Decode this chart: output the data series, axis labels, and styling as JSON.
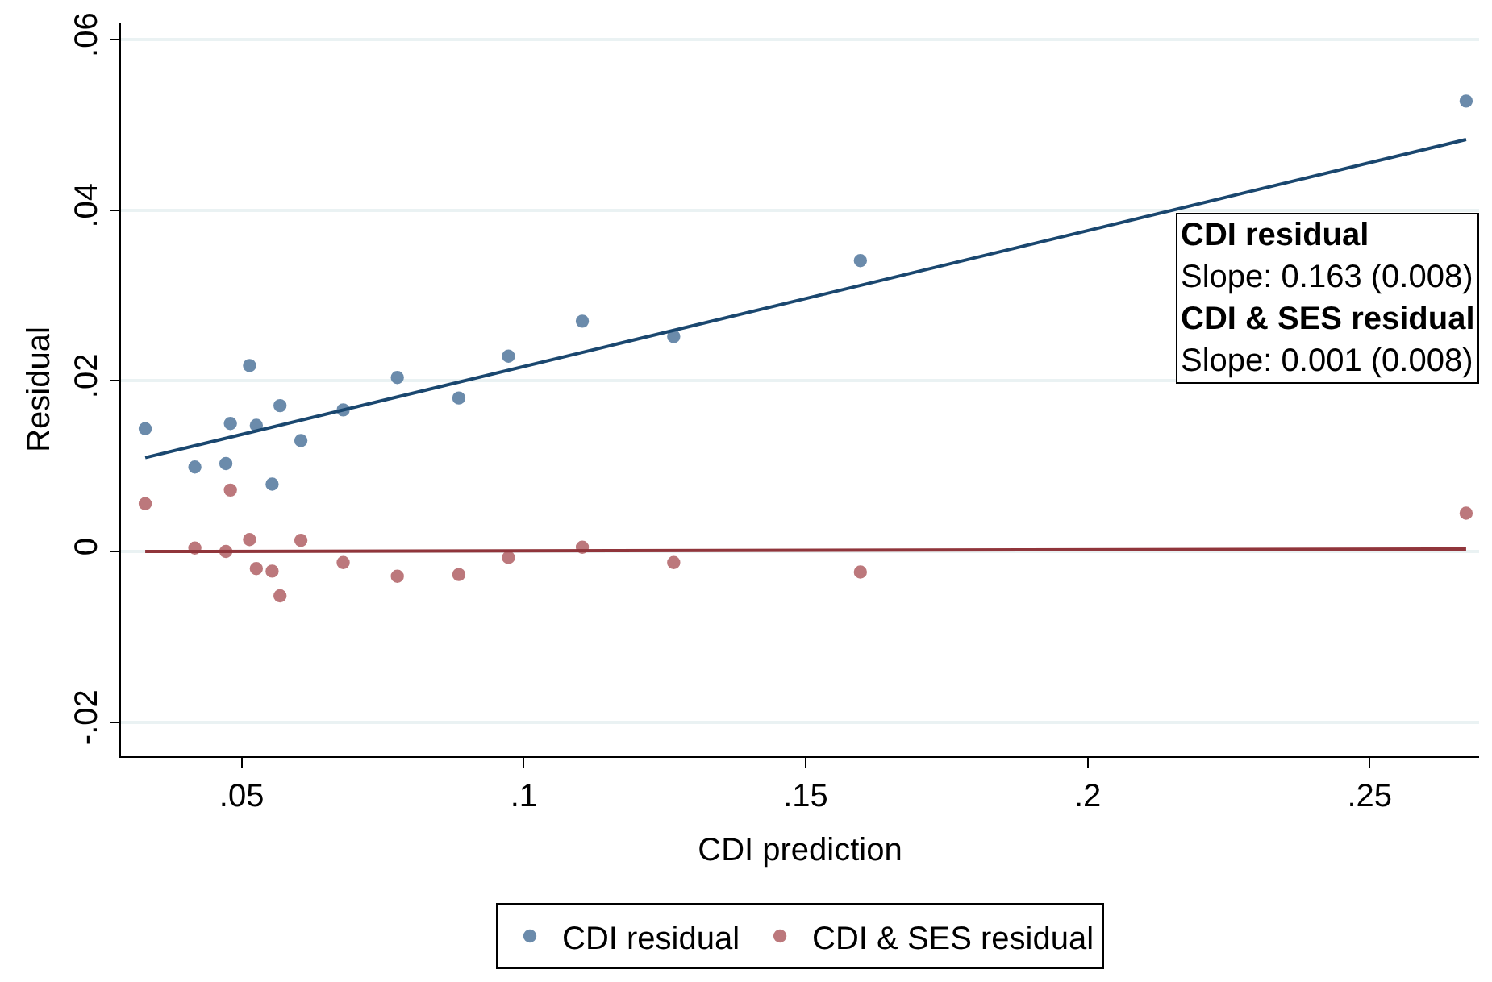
{
  "chart_data": {
    "type": "scatter",
    "xlabel": "CDI prediction",
    "ylabel": "Residual",
    "xlim": [
      0.0286,
      0.2694
    ],
    "ylim": [
      -0.024,
      0.062
    ],
    "xticks": [
      {
        "value": 0.05,
        "label": ".05"
      },
      {
        "value": 0.1,
        "label": ".1"
      },
      {
        "value": 0.15,
        "label": ".15"
      },
      {
        "value": 0.2,
        "label": ".2"
      },
      {
        "value": 0.25,
        "label": ".25"
      }
    ],
    "yticks": [
      {
        "value": -0.02,
        "label": "-.02"
      },
      {
        "value": 0,
        "label": "0"
      },
      {
        "value": 0.02,
        "label": ".02"
      },
      {
        "value": 0.04,
        "label": ".04"
      },
      {
        "value": 0.06,
        "label": ".06"
      }
    ],
    "grid": "y",
    "legend": "bottom",
    "marker": "circle",
    "annotations": [
      "CDI residual",
      "Slope: 0.163 (0.008)",
      "CDI & SES residual",
      "Slope: 0.001 (0.008)"
    ],
    "series": [
      {
        "name": "CDI residual",
        "color": "#5b7fa3",
        "x": [
          0.0329,
          0.0417,
          0.0472,
          0.048,
          0.0514,
          0.0526,
          0.0554,
          0.0568,
          0.0605,
          0.068,
          0.0776,
          0.0885,
          0.0973,
          0.1104,
          0.1266,
          0.1597,
          0.2671
        ],
        "values": [
          0.0144,
          0.0099,
          0.0103,
          0.015,
          0.0218,
          0.0148,
          0.0079,
          0.0171,
          0.013,
          0.0166,
          0.0204,
          0.018,
          0.0229,
          0.027,
          0.0252,
          0.0341,
          0.0528
        ]
      },
      {
        "name": "CDI & SES residual",
        "color": "#b56a6e",
        "x": [
          0.0329,
          0.0417,
          0.0472,
          0.048,
          0.0514,
          0.0526,
          0.0554,
          0.0568,
          0.0605,
          0.068,
          0.0776,
          0.0885,
          0.0973,
          0.1104,
          0.1266,
          0.1597,
          0.2671
        ],
        "values": [
          0.0056,
          0.0004,
          0.0,
          0.0072,
          0.0014,
          -0.002,
          -0.0023,
          -0.0052,
          0.0013,
          -0.0013,
          -0.0029,
          -0.0027,
          -0.0007,
          0.0005,
          -0.0013,
          -0.0024,
          0.0045
        ]
      },
      {
        "type": "line",
        "marker": "none",
        "color": "#1a476f",
        "x": [
          0.0329,
          0.2671
        ],
        "values": [
          0.011,
          0.0483
        ]
      },
      {
        "type": "line",
        "marker": "none",
        "color": "#90353b",
        "x": [
          0.0329,
          0.2671
        ],
        "values": [
          0.0,
          0.0003
        ]
      }
    ]
  }
}
